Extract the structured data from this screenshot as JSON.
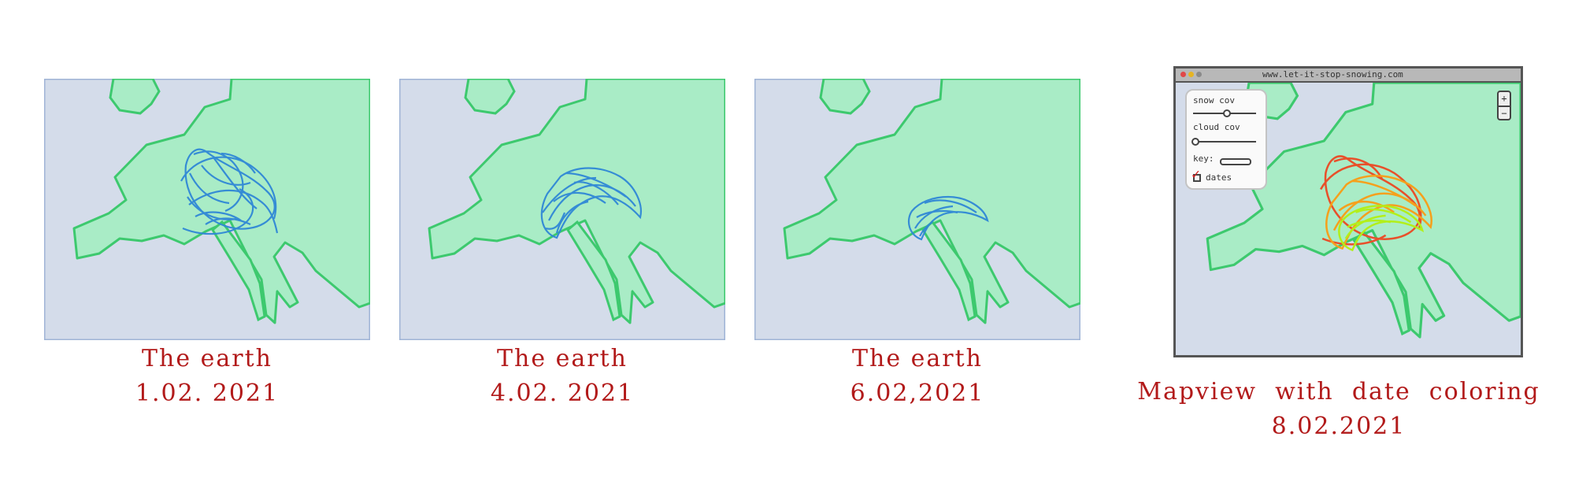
{
  "frames": [
    {
      "caption_line1": "The earth",
      "caption_line2": "1.02. 2021"
    },
    {
      "caption_line1": "The earth",
      "caption_line2": "4.02. 2021"
    },
    {
      "caption_line1": "The  earth",
      "caption_line2": "6.02,2021"
    }
  ],
  "mapview": {
    "url": "www.let-it-stop-snowing.com",
    "controls": {
      "snow_label": "snow cov",
      "cloud_label": "cloud cov",
      "key_label": "key:",
      "checkbox_label": "dates"
    },
    "zoom_in": "+",
    "zoom_out": "−",
    "caption_line1": "Mapview  with  date  coloring",
    "caption_line2": "8.02.2021"
  },
  "colors": {
    "ocean": "#d4dcea",
    "land": "#a9ecc6",
    "coast": "#3dc96e",
    "frame_border": "#a0b4d6",
    "snow": "#2f87d6",
    "date_colors": [
      "#e8502a",
      "#f5a01c",
      "#b2ef1a"
    ],
    "caption": "#b21a1a"
  },
  "icons": [
    "close-dot-icon",
    "minimize-dot-icon",
    "maximize-dot-icon",
    "checkmark-icon"
  ]
}
